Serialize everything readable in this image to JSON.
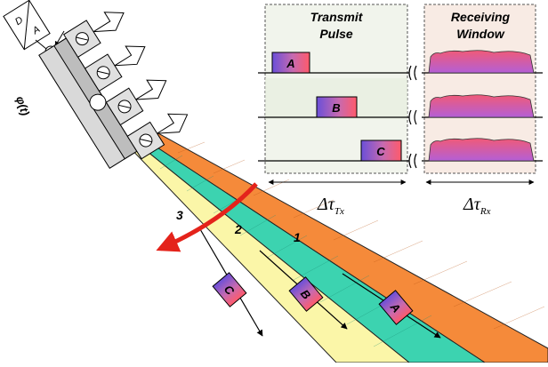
{
  "dac_box": {
    "top": "D",
    "bottom": "A"
  },
  "phase_label": "φ(t)",
  "panels": {
    "transmit": {
      "title_line1": "Transmit",
      "title_line2": "Pulse"
    },
    "receive": {
      "title_line1": "Receiving",
      "title_line2": "Window"
    }
  },
  "pulses": [
    "A",
    "B",
    "C"
  ],
  "beams": [
    "1",
    "2",
    "3"
  ],
  "beam_pulse_tags": [
    "A",
    "B",
    "C"
  ],
  "delta_tx": {
    "symbol": "Δτ",
    "sub": "Tx"
  },
  "delta_rx": {
    "symbol": "Δτ",
    "sub": "Rx"
  },
  "colors": {
    "panel_tx_bg": "#f1f4ec",
    "panel_rx_bg": "#f8ebe4",
    "beam1": "#f58a3a",
    "beam2": "#3cd3b0",
    "beam3": "#fbf6a8",
    "sweep_arrow": "#e4231b",
    "pulse_left": "#6a4fd8",
    "pulse_right": "#ff5a6a",
    "rx_top": "#e9486e",
    "rx_bottom": "#b35fd6"
  }
}
